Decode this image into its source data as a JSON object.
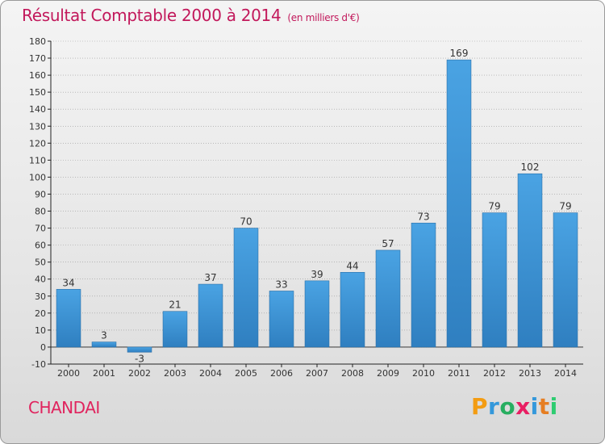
{
  "header": {
    "title": "Résultat Comptable 2000 à 2014",
    "subtitle": "(en milliers d'€)"
  },
  "footer": {
    "commune": "CHANDAI",
    "logo_letters": [
      "P",
      "r",
      "o",
      "x",
      "i",
      "t",
      "i"
    ],
    "logo_colors": [
      "#f39c12",
      "#3498db",
      "#27ae60",
      "#e91e63",
      "#3498db",
      "#e67e22",
      "#2ecc71"
    ]
  },
  "colors": {
    "bar": "#4aa3e3",
    "bar_dark": "#2f7fc0",
    "axis": "#222222",
    "grid": "#999999",
    "title": "#c2185b"
  },
  "chart_data": {
    "type": "bar",
    "title": "Résultat Comptable 2000 à 2014",
    "subtitle": "(en milliers d'€)",
    "categories": [
      "2000",
      "2001",
      "2002",
      "2003",
      "2004",
      "2005",
      "2006",
      "2007",
      "2008",
      "2009",
      "2010",
      "2011",
      "2012",
      "2013",
      "2014"
    ],
    "values": [
      34,
      3,
      -3,
      21,
      37,
      70,
      33,
      39,
      44,
      57,
      73,
      169,
      79,
      102,
      79
    ],
    "ylim": [
      -10,
      180
    ],
    "yticks": [
      -10,
      0,
      10,
      20,
      30,
      40,
      50,
      60,
      70,
      80,
      90,
      100,
      110,
      120,
      130,
      140,
      150,
      160,
      170,
      180
    ],
    "grid": true,
    "xlabel": "",
    "ylabel": ""
  }
}
